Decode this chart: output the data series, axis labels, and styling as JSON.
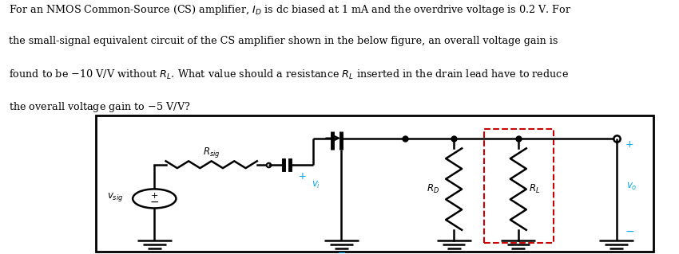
{
  "fig_width": 8.5,
  "fig_height": 3.19,
  "dpi": 100,
  "bg_color": "#ffffff",
  "text_color": "#000000",
  "blue_color": "#00aaee",
  "red_color": "#cc0000",
  "wire_lw": 1.8,
  "resistor_lw": 1.8,
  "border_lw": 2.0,
  "text_lines": [
    "For an NMOS Common-Source (CS) amplifier, $I_D$ is dc biased at 1 mA and the overdrive voltage is 0.2 V. For",
    "the small-signal equivalent circuit of the CS amplifier shown in the below figure, an overall voltage gain is",
    "found to be $-$10 V/V without $R_L$. What value should a resistance $R_L$ inserted in the drain lead have to reduce",
    "the overall voltage gain to $-$5 V/V?"
  ]
}
